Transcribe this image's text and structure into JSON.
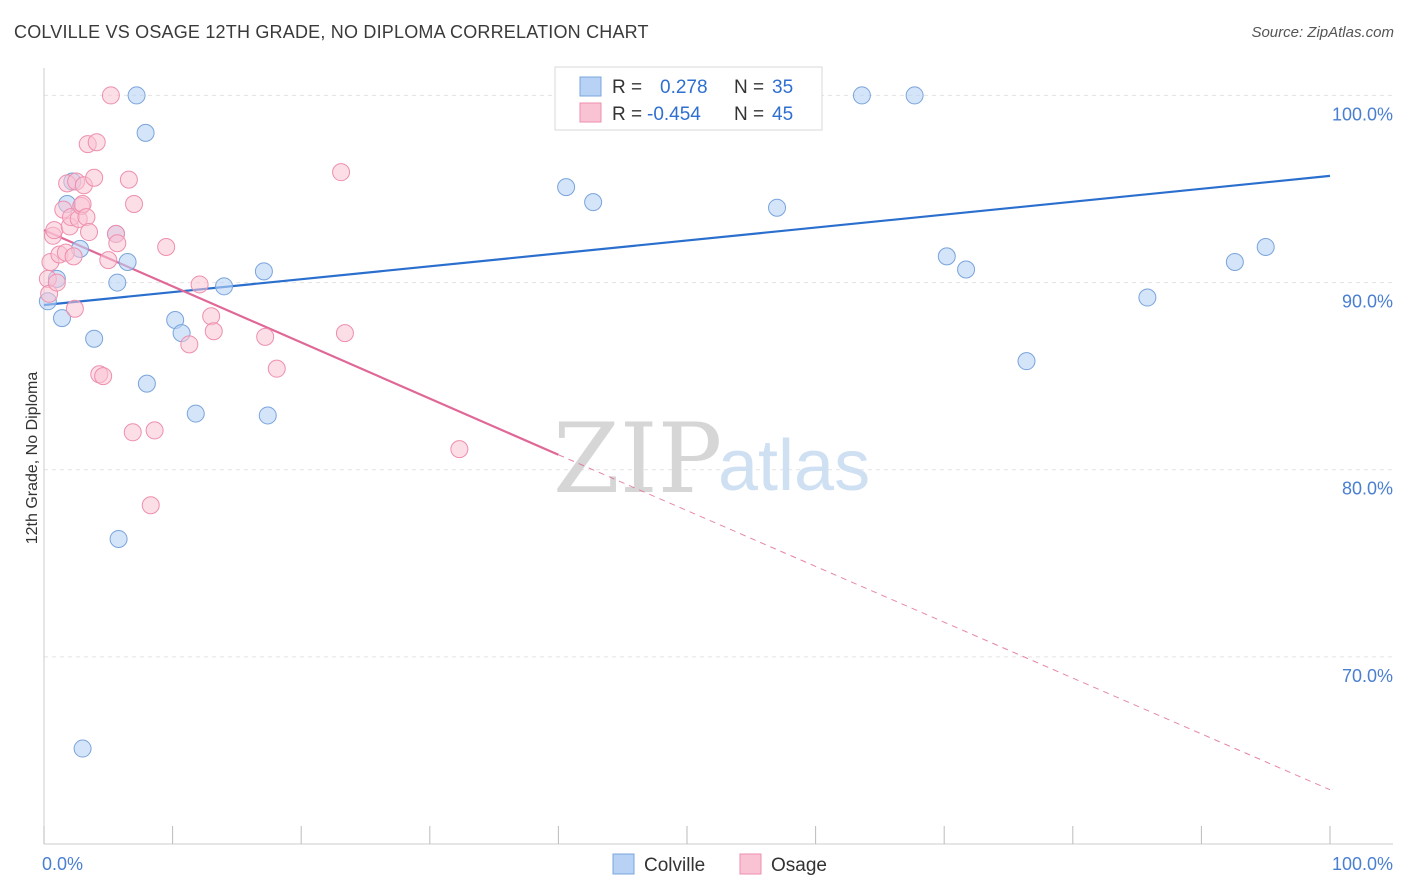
{
  "title": "COLVILLE VS OSAGE 12TH GRADE, NO DIPLOMA CORRELATION CHART",
  "source": "Source: ZipAtlas.com",
  "watermark": {
    "zip": "ZIP",
    "atlas": "atlas"
  },
  "colors": {
    "colville_fill": "#b8d2f5",
    "colville_stroke": "#7aa4dc",
    "colville_line": "#2b6fce",
    "osage_fill": "#f9c3d3",
    "osage_stroke": "#ee8fae",
    "osage_line": "#e06896",
    "grid": "#e3e3e3",
    "tick_label": "#4a7fd0"
  },
  "legend": {
    "rows": [
      {
        "series": "Colville",
        "r_label": "R =",
        "r_value": "0.278",
        "n_label": "N =",
        "n_value": "35"
      },
      {
        "series": "Osage",
        "r_label": "R =",
        "r_value": "-0.454",
        "n_label": "N =",
        "n_value": "45"
      }
    ]
  },
  "chart_data": {
    "type": "scatter",
    "title": "COLVILLE VS OSAGE 12TH GRADE, NO DIPLOMA CORRELATION CHART",
    "xlabel": "",
    "ylabel": "12th Grade, No Diploma",
    "xlim": [
      0,
      100
    ],
    "ylim": [
      60,
      102
    ],
    "x_ticks": [
      0,
      10,
      20,
      30,
      40,
      50,
      60,
      70,
      80,
      90,
      100
    ],
    "x_tick_labels": [
      {
        "value": 0,
        "label": "0.0%"
      },
      {
        "value": 100,
        "label": "100.0%"
      }
    ],
    "y_ticks": [
      {
        "value": 100,
        "label": "100.0%"
      },
      {
        "value": 90,
        "label": "90.0%"
      },
      {
        "value": 80,
        "label": "80.0%"
      },
      {
        "value": 70,
        "label": "70.0%"
      }
    ],
    "grid": true,
    "legend_position": "top-center",
    "series": [
      {
        "name": "Colville",
        "r": 0.278,
        "n": 35,
        "trend": {
          "x0": 0,
          "y0": 88.8,
          "x1": 100,
          "y1": 95.7
        },
        "points": [
          [
            0.3,
            89.0
          ],
          [
            1.0,
            90.2
          ],
          [
            1.4,
            88.1
          ],
          [
            1.8,
            94.2
          ],
          [
            2.2,
            95.4
          ],
          [
            2.8,
            91.8
          ],
          [
            3.0,
            65.1
          ],
          [
            3.9,
            87.0
          ],
          [
            5.6,
            92.6
          ],
          [
            5.7,
            90.0
          ],
          [
            5.8,
            76.3
          ],
          [
            6.5,
            91.1
          ],
          [
            7.2,
            100.0
          ],
          [
            7.9,
            98.0
          ],
          [
            8.0,
            84.6
          ],
          [
            10.2,
            88.0
          ],
          [
            10.7,
            87.3
          ],
          [
            11.8,
            83.0
          ],
          [
            14.0,
            89.8
          ],
          [
            17.1,
            90.6
          ],
          [
            17.4,
            82.9
          ],
          [
            40.6,
            95.1
          ],
          [
            42.7,
            94.3
          ],
          [
            48.8,
            100.0
          ],
          [
            51.1,
            100.0
          ],
          [
            53.7,
            100.0
          ],
          [
            57.0,
            94.0
          ],
          [
            63.6,
            100.0
          ],
          [
            67.7,
            100.0
          ],
          [
            70.2,
            91.4
          ],
          [
            71.7,
            90.7
          ],
          [
            76.4,
            85.8
          ],
          [
            85.8,
            89.2
          ],
          [
            92.6,
            91.1
          ],
          [
            95.0,
            91.9
          ]
        ]
      },
      {
        "name": "Osage",
        "r": -0.454,
        "n": 45,
        "trend_solid": {
          "x0": 0,
          "y0": 92.8,
          "x1": 40,
          "y1": 80.8
        },
        "trend_dashed": {
          "x0": 40,
          "y0": 80.8,
          "x1": 100,
          "y1": 62.9
        },
        "points": [
          [
            0.3,
            90.2
          ],
          [
            0.4,
            89.4
          ],
          [
            0.5,
            91.1
          ],
          [
            0.7,
            92.5
          ],
          [
            0.8,
            92.8
          ],
          [
            1.0,
            90.0
          ],
          [
            1.2,
            91.5
          ],
          [
            1.5,
            93.9
          ],
          [
            1.7,
            91.6
          ],
          [
            1.8,
            95.3
          ],
          [
            2.0,
            93.0
          ],
          [
            2.1,
            93.5
          ],
          [
            2.3,
            91.4
          ],
          [
            2.4,
            88.6
          ],
          [
            2.5,
            95.4
          ],
          [
            2.7,
            93.4
          ],
          [
            2.9,
            94.1
          ],
          [
            3.0,
            94.2
          ],
          [
            3.1,
            95.2
          ],
          [
            3.3,
            93.5
          ],
          [
            3.4,
            97.4
          ],
          [
            3.5,
            92.7
          ],
          [
            3.9,
            95.6
          ],
          [
            4.1,
            97.5
          ],
          [
            4.3,
            85.1
          ],
          [
            4.6,
            85.0
          ],
          [
            5.0,
            91.2
          ],
          [
            5.2,
            100.0
          ],
          [
            5.6,
            92.6
          ],
          [
            5.7,
            92.1
          ],
          [
            6.6,
            95.5
          ],
          [
            6.9,
            82.0
          ],
          [
            7.0,
            94.2
          ],
          [
            8.3,
            78.1
          ],
          [
            8.6,
            82.1
          ],
          [
            9.5,
            91.9
          ],
          [
            11.3,
            86.7
          ],
          [
            12.1,
            89.9
          ],
          [
            13.0,
            88.2
          ],
          [
            13.2,
            87.4
          ],
          [
            17.2,
            87.1
          ],
          [
            18.1,
            85.4
          ],
          [
            23.1,
            95.9
          ],
          [
            23.4,
            87.3
          ],
          [
            32.3,
            81.1
          ]
        ]
      }
    ]
  },
  "bottom_legend": [
    {
      "label": "Colville"
    },
    {
      "label": "Osage"
    }
  ]
}
